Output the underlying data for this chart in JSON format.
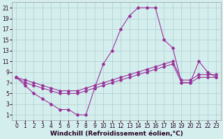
{
  "xlabel": "Windchill (Refroidissement éolien,°C)",
  "bg_color": "#d4eeee",
  "line_color": "#993399",
  "xlim": [
    -0.5,
    23.5
  ],
  "ylim": [
    0,
    22
  ],
  "xticks": [
    0,
    1,
    2,
    3,
    4,
    5,
    6,
    7,
    8,
    9,
    10,
    11,
    12,
    13,
    14,
    15,
    16,
    17,
    18,
    19,
    20,
    21,
    22,
    23
  ],
  "yticks": [
    1,
    3,
    5,
    7,
    9,
    11,
    13,
    15,
    17,
    19,
    21
  ],
  "grid_color": "#b0cccc",
  "line1_x": [
    0,
    1,
    2,
    3,
    4,
    5,
    6,
    7,
    8,
    9,
    10,
    11,
    12,
    13,
    14,
    15,
    16,
    17,
    18,
    19,
    20,
    21,
    22,
    23
  ],
  "line1_y": [
    8,
    6.5,
    5,
    4,
    3,
    2,
    2,
    1,
    1,
    6,
    10.5,
    13,
    17,
    19.5,
    21,
    21,
    21,
    15,
    13.5,
    7,
    7,
    11,
    9,
    8
  ],
  "line2_x": [
    0,
    1,
    2,
    3,
    4,
    5,
    6,
    7,
    8,
    9,
    10,
    11,
    12,
    13,
    14,
    15,
    16,
    17,
    18,
    19,
    20,
    21,
    22,
    23
  ],
  "line2_y": [
    8,
    7,
    6.5,
    6,
    5.5,
    5,
    5,
    5,
    5.5,
    6,
    6.5,
    7,
    7.5,
    8,
    8.5,
    9,
    9.5,
    10,
    10.5,
    7,
    7,
    8,
    8,
    8
  ],
  "line3_x": [
    0,
    1,
    2,
    3,
    4,
    5,
    6,
    7,
    8,
    9,
    10,
    11,
    12,
    13,
    14,
    15,
    16,
    17,
    18,
    19,
    20,
    21,
    22,
    23
  ],
  "line3_y": [
    8,
    7.5,
    7,
    6.5,
    6,
    5.5,
    5.5,
    5.5,
    6,
    6.5,
    7,
    7.5,
    8,
    8.5,
    9,
    9.5,
    10,
    10.5,
    11,
    7.5,
    7.5,
    8.5,
    8.5,
    8.5
  ],
  "marker": "D",
  "markersize": 2.0,
  "linewidth": 0.8,
  "xlabel_fontsize": 6.5,
  "tick_fontsize": 5.5
}
